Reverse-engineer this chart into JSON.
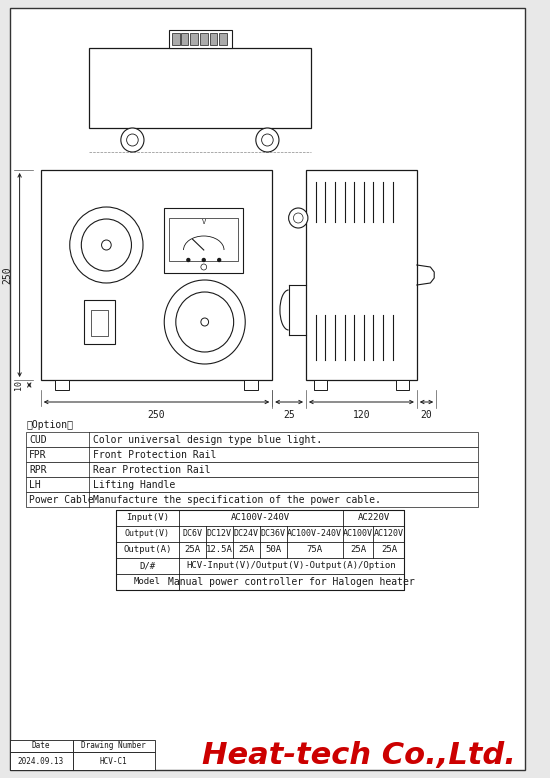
{
  "bg_color": "#e8e8e8",
  "line_color": "#1a1a1a",
  "title_company": "Heat-tech Co.,Ltd.",
  "title_color": "#cc0000",
  "date_label": "Date",
  "date_value": "2024.09.13",
  "drawing_number_label": "Drawing Number",
  "drawing_number_value": "HCV-C1",
  "option_title": "【Option】",
  "option_rows": [
    [
      "CUD",
      "Color universal design type blue light."
    ],
    [
      "FPR",
      "Front Protection Rail"
    ],
    [
      "RPR",
      "Rear Protection Rail"
    ],
    [
      "LH",
      "Lifting Handle"
    ],
    [
      "Power Cable",
      "Manufacture the specification of the power cable."
    ]
  ],
  "dim_width": "250",
  "dim_height": "250",
  "dim_depth1": "25",
  "dim_depth2": "120",
  "dim_depth3": "20",
  "dim_foot": "10"
}
